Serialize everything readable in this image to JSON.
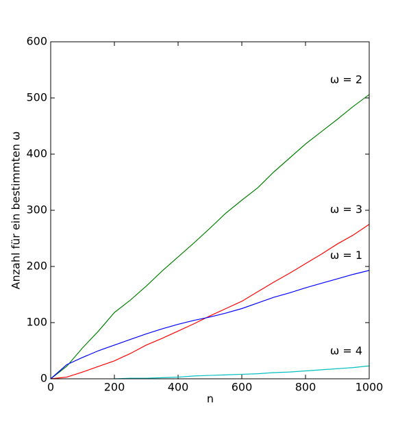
{
  "chart_data": {
    "type": "line",
    "x": [
      0,
      50,
      100,
      150,
      200,
      250,
      300,
      350,
      400,
      450,
      500,
      550,
      600,
      650,
      700,
      750,
      800,
      850,
      900,
      950,
      1000
    ],
    "series": [
      {
        "name": "ω = 2",
        "color": "#008000",
        "values": [
          0,
          22,
          55,
          85,
          118,
          140,
          165,
          192,
          217,
          242,
          268,
          295,
          318,
          340,
          368,
          393,
          418,
          440,
          462,
          485,
          506
        ]
      },
      {
        "name": "ω = 3",
        "color": "#ff0000",
        "values": [
          0,
          3,
          12,
          22,
          32,
          45,
          60,
          72,
          85,
          98,
          112,
          125,
          138,
          155,
          172,
          188,
          205,
          222,
          240,
          256,
          275
        ]
      },
      {
        "name": "ω = 1",
        "color": "#0000ff",
        "values": [
          0,
          25,
          38,
          50,
          60,
          70,
          80,
          89,
          97,
          104,
          110,
          117,
          125,
          135,
          145,
          153,
          162,
          170,
          178,
          186,
          193
        ]
      },
      {
        "name": "ω = 4",
        "color": "#00bfbf",
        "values": [
          null,
          null,
          null,
          null,
          0,
          1,
          1,
          2,
          3,
          5,
          6,
          7,
          8,
          9,
          11,
          12,
          14,
          16,
          18,
          20,
          23
        ]
      }
    ],
    "xlabel": "n",
    "ylabel": "Anzahl für ein bestimmten ω",
    "xlim": [
      0,
      1000
    ],
    "ylim": [
      0,
      600
    ],
    "xticks": [
      0,
      200,
      400,
      600,
      800,
      1000
    ],
    "yticks": [
      0,
      100,
      200,
      300,
      400,
      500,
      600
    ],
    "grid": false
  }
}
